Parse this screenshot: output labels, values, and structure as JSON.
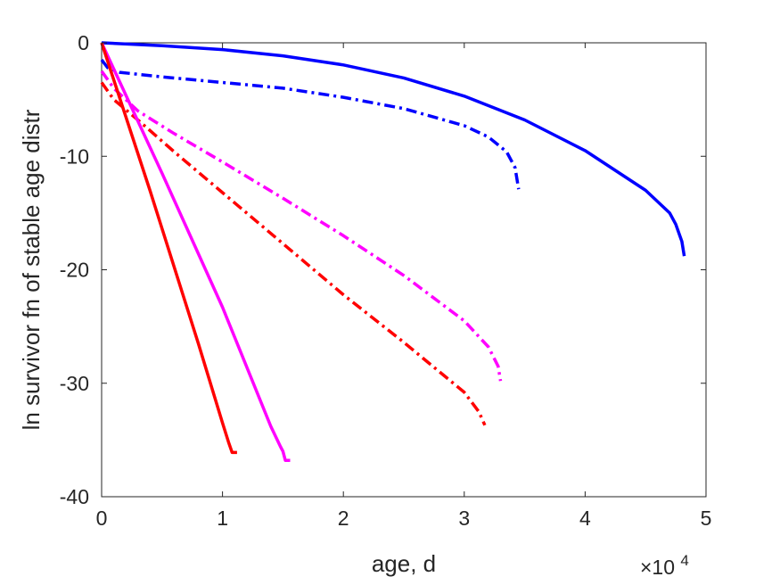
{
  "chart_data": {
    "type": "line",
    "title": "",
    "xlabel": "age, d",
    "ylabel": "ln survivor fn of stable age distr",
    "x_multiplier": "×10",
    "x_multiplier_exponent": "4",
    "xlim": [
      0,
      5
    ],
    "ylim": [
      -40,
      0
    ],
    "xticks": [
      0,
      1,
      2,
      3,
      4,
      5
    ],
    "yticks": [
      0,
      -10,
      -20,
      -30,
      -40
    ],
    "grid": false,
    "legend": "none",
    "series": [
      {
        "color": "#0000ff",
        "style": "solid",
        "x": [
          0,
          0.5,
          1.0,
          1.5,
          2.0,
          2.5,
          3.0,
          3.5,
          4.0,
          4.5,
          4.7,
          4.75,
          4.8,
          4.82
        ],
        "y": [
          0,
          -0.25,
          -0.6,
          -1.15,
          -1.95,
          -3.1,
          -4.7,
          -6.8,
          -9.5,
          -13.0,
          -15.0,
          -16.0,
          -17.5,
          -18.8
        ]
      },
      {
        "color": "#0000ff",
        "style": "dashdot",
        "x": [
          0,
          0.05,
          0.15,
          0.5,
          1.0,
          1.5,
          2.0,
          2.5,
          3.0,
          3.2,
          3.35,
          3.42,
          3.45
        ],
        "y": [
          -1.5,
          -2.2,
          -2.6,
          -3.0,
          -3.5,
          -4.0,
          -4.8,
          -5.8,
          -7.3,
          -8.3,
          -9.6,
          -11.0,
          -12.9
        ]
      },
      {
        "color": "#ff00ff",
        "style": "dashdot",
        "x": [
          0,
          0.1,
          0.3,
          0.6,
          1.0,
          1.5,
          2.0,
          2.5,
          3.0,
          3.2,
          3.28,
          3.3
        ],
        "y": [
          -2.5,
          -4.0,
          -6.0,
          -8.0,
          -10.5,
          -13.7,
          -17.0,
          -20.5,
          -24.5,
          -26.8,
          -28.5,
          -29.8
        ]
      },
      {
        "color": "#ff0000",
        "style": "dashdot",
        "x": [
          0,
          0.1,
          0.3,
          0.6,
          1.0,
          1.5,
          2.0,
          2.5,
          3.0,
          3.12,
          3.17
        ],
        "y": [
          -3.5,
          -5.0,
          -6.8,
          -9.6,
          -13.2,
          -17.7,
          -22.2,
          -26.4,
          -30.8,
          -32.5,
          -33.7
        ]
      },
      {
        "color": "#ff00ff",
        "style": "solid",
        "x": [
          0,
          0.5,
          1.0,
          1.4,
          1.48,
          1.5,
          1.52,
          1.56
        ],
        "y": [
          0,
          -11.5,
          -23.3,
          -33.8,
          -35.6,
          -36.0,
          -36.8,
          -36.8
        ]
      },
      {
        "color": "#ff0000",
        "style": "solid",
        "x": [
          0,
          0.4,
          0.8,
          1.0,
          1.05,
          1.08,
          1.12
        ],
        "y": [
          0,
          -13.0,
          -26.5,
          -33.5,
          -35.2,
          -36.1,
          -36.1
        ]
      }
    ]
  }
}
